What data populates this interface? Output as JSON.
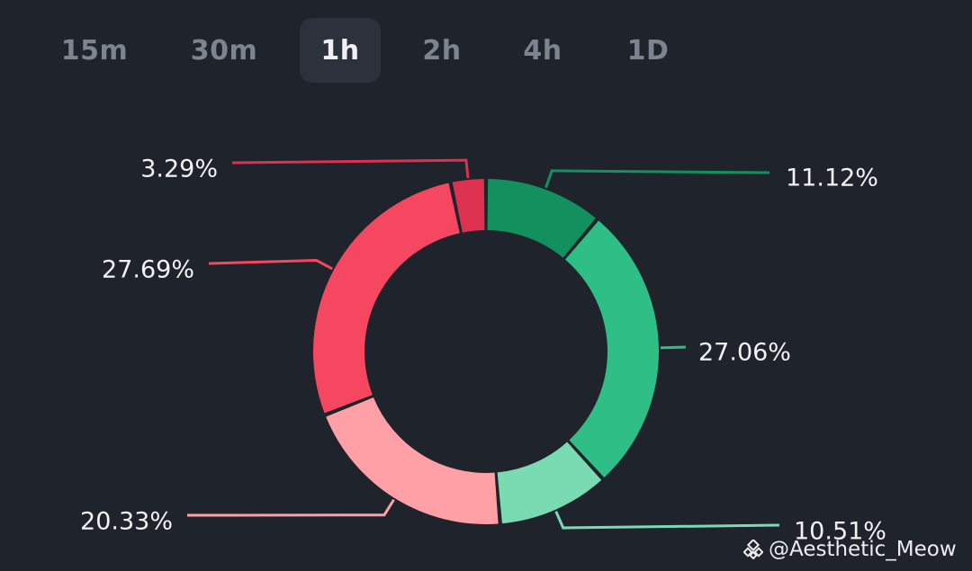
{
  "tabs": [
    {
      "label": "15m",
      "active": false
    },
    {
      "label": "30m",
      "active": false
    },
    {
      "label": "1h",
      "active": true
    },
    {
      "label": "2h",
      "active": false
    },
    {
      "label": "4h",
      "active": false
    },
    {
      "label": "1D",
      "active": false
    }
  ],
  "chart_data": {
    "type": "pie",
    "variant": "donut",
    "slices": [
      {
        "value": 11.12,
        "label": "11.12%",
        "color": "#12915f"
      },
      {
        "value": 27.06,
        "label": "27.06%",
        "color": "#2fbe86"
      },
      {
        "value": 10.51,
        "label": "10.51%",
        "color": "#7adbb2"
      },
      {
        "value": 20.33,
        "label": "20.33%",
        "color": "#ff9fa6"
      },
      {
        "value": 27.69,
        "label": "27.69%",
        "color": "#f64760"
      },
      {
        "value": 3.29,
        "label": "3.29%",
        "color": "#dd3150"
      }
    ],
    "start": "top",
    "direction": "clockwise"
  },
  "watermark": {
    "text": "@Aesthetic_Meow",
    "logo_icon": "binance-logo-icon"
  },
  "colors": {
    "background": "#1f232c",
    "active_tab": "#2c313b"
  }
}
